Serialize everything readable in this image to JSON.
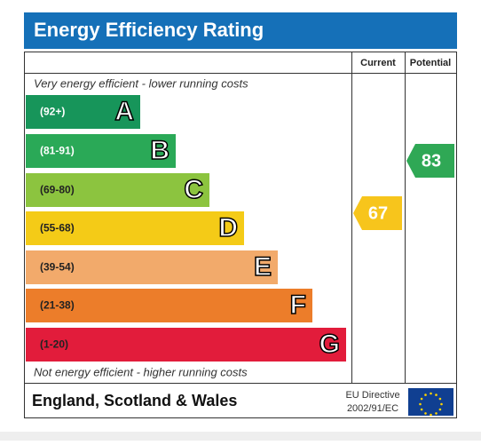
{
  "header": {
    "title": "Energy Efficiency Rating"
  },
  "columns": [
    "Current",
    "Potential"
  ],
  "top_note": "Very energy efficient - lower running costs",
  "bottom_note": "Not energy efficient - higher running costs",
  "bands": [
    {
      "range": "(92+)",
      "letter": "A"
    },
    {
      "range": "(81-91)",
      "letter": "B"
    },
    {
      "range": "(69-80)",
      "letter": "C"
    },
    {
      "range": "(55-68)",
      "letter": "D"
    },
    {
      "range": "(39-54)",
      "letter": "E"
    },
    {
      "range": "(21-38)",
      "letter": "F"
    },
    {
      "range": "(1-20)",
      "letter": "G"
    }
  ],
  "current": "67",
  "potential": "83",
  "footer": {
    "region": "England, Scotland & Wales",
    "directive_line1": "EU Directive",
    "directive_line2": "2002/91/EC"
  }
}
